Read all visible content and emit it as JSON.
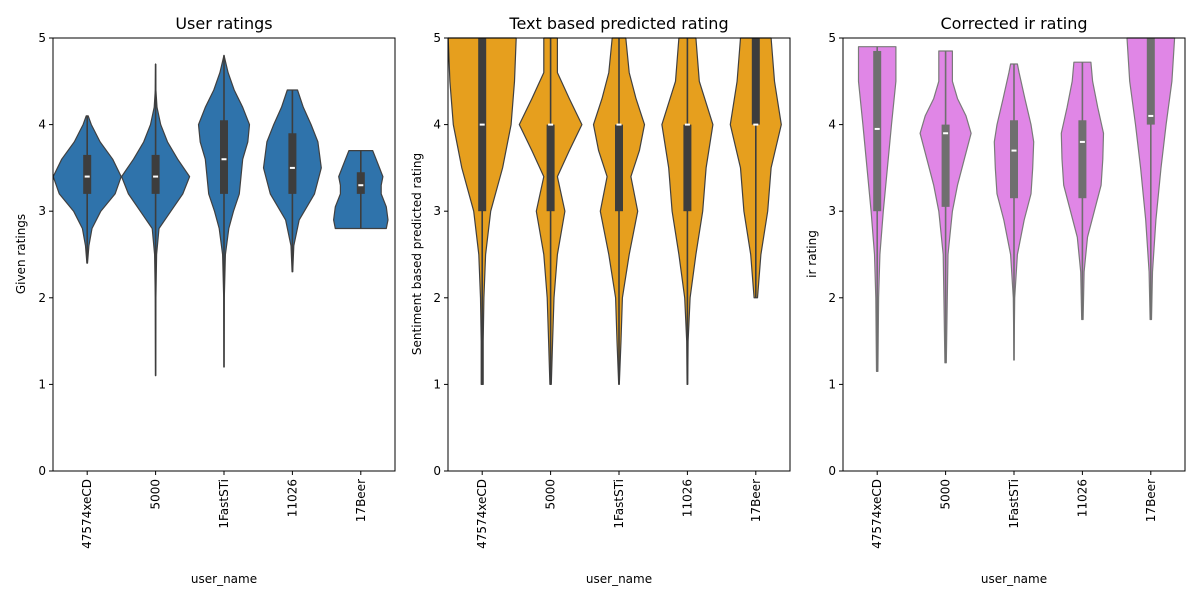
{
  "chart_data": [
    {
      "type": "violin",
      "title": "User ratings",
      "xlabel": "user_name",
      "ylabel": "Given ratings",
      "ylim": [
        0,
        5
      ],
      "yticks": [
        0,
        1,
        2,
        3,
        4,
        5
      ],
      "color": "#2f73ab",
      "categories": [
        "47574xeCD",
        "5000",
        "1FastSTi",
        "11026",
        "17Beer"
      ],
      "distributions": [
        {
          "min": 2.4,
          "q1": 3.2,
          "median": 3.4,
          "q3": 3.65,
          "max": 4.1,
          "profile": [
            [
              2.4,
              0.01
            ],
            [
              2.6,
              0.05
            ],
            [
              2.8,
              0.14
            ],
            [
              3.0,
              0.4
            ],
            [
              3.2,
              0.82
            ],
            [
              3.4,
              1.0
            ],
            [
              3.6,
              0.75
            ],
            [
              3.8,
              0.38
            ],
            [
              4.0,
              0.12
            ],
            [
              4.1,
              0.03
            ]
          ]
        },
        {
          "min": 1.1,
          "q1": 3.2,
          "median": 3.4,
          "q3": 3.65,
          "max": 4.7,
          "profile": [
            [
              1.1,
              0.0
            ],
            [
              2.0,
              0.01
            ],
            [
              2.5,
              0.03
            ],
            [
              2.8,
              0.1
            ],
            [
              3.0,
              0.45
            ],
            [
              3.2,
              0.8
            ],
            [
              3.4,
              1.0
            ],
            [
              3.6,
              0.65
            ],
            [
              3.8,
              0.35
            ],
            [
              4.0,
              0.15
            ],
            [
              4.2,
              0.04
            ],
            [
              4.4,
              0.01
            ],
            [
              4.7,
              0.0
            ]
          ]
        },
        {
          "min": 1.2,
          "q1": 3.2,
          "median": 3.6,
          "q3": 4.05,
          "max": 4.8,
          "profile": [
            [
              1.2,
              0.0
            ],
            [
              2.0,
              0.01
            ],
            [
              2.5,
              0.04
            ],
            [
              2.8,
              0.14
            ],
            [
              3.0,
              0.28
            ],
            [
              3.2,
              0.45
            ],
            [
              3.6,
              0.55
            ],
            [
              3.8,
              0.7
            ],
            [
              4.0,
              0.75
            ],
            [
              4.2,
              0.55
            ],
            [
              4.4,
              0.3
            ],
            [
              4.6,
              0.12
            ],
            [
              4.8,
              0.0
            ]
          ]
        },
        {
          "min": 2.3,
          "q1": 3.2,
          "median": 3.5,
          "q3": 3.9,
          "max": 4.4,
          "profile": [
            [
              2.3,
              0.01
            ],
            [
              2.6,
              0.04
            ],
            [
              2.9,
              0.2
            ],
            [
              3.2,
              0.65
            ],
            [
              3.5,
              0.85
            ],
            [
              3.8,
              0.75
            ],
            [
              4.0,
              0.55
            ],
            [
              4.2,
              0.32
            ],
            [
              4.4,
              0.15
            ]
          ]
        },
        {
          "min": 2.8,
          "q1": 3.2,
          "median": 3.3,
          "q3": 3.45,
          "max": 3.7,
          "profile": [
            [
              2.8,
              0.75
            ],
            [
              2.9,
              0.8
            ],
            [
              3.05,
              0.75
            ],
            [
              3.2,
              0.6
            ],
            [
              3.3,
              0.6
            ],
            [
              3.4,
              0.65
            ],
            [
              3.5,
              0.55
            ],
            [
              3.6,
              0.45
            ],
            [
              3.7,
              0.35
            ]
          ]
        }
      ],
      "grid": false
    },
    {
      "type": "violin",
      "title": "Text based predicted rating",
      "xlabel": "user_name",
      "ylabel": "Sentiment based predicted rating",
      "ylim": [
        0,
        5
      ],
      "yticks": [
        0,
        1,
        2,
        3,
        4,
        5
      ],
      "color": "#e69f1e",
      "categories": [
        "47574xeCD",
        "5000",
        "1FastSTi",
        "11026",
        "17Beer"
      ],
      "distributions": [
        {
          "min": 1.0,
          "q1": 3.0,
          "median": 4.0,
          "q3": 5.0,
          "max": 5.0,
          "profile": [
            [
              1.0,
              0.03
            ],
            [
              1.5,
              0.03
            ],
            [
              2.0,
              0.05
            ],
            [
              2.5,
              0.1
            ],
            [
              3.0,
              0.25
            ],
            [
              3.5,
              0.6
            ],
            [
              4.0,
              0.85
            ],
            [
              4.5,
              0.95
            ],
            [
              5.0,
              1.0
            ]
          ]
        },
        {
          "min": 1.0,
          "q1": 3.0,
          "median": 4.0,
          "q3": 4.0,
          "max": 5.0,
          "profile": [
            [
              1.0,
              0.02
            ],
            [
              1.5,
              0.06
            ],
            [
              2.0,
              0.1
            ],
            [
              2.5,
              0.2
            ],
            [
              3.0,
              0.42
            ],
            [
              3.4,
              0.2
            ],
            [
              3.7,
              0.55
            ],
            [
              4.0,
              0.92
            ],
            [
              4.3,
              0.55
            ],
            [
              4.6,
              0.2
            ],
            [
              5.0,
              0.2
            ]
          ]
        },
        {
          "min": 1.0,
          "q1": 3.0,
          "median": 4.0,
          "q3": 4.0,
          "max": 5.0,
          "profile": [
            [
              1.0,
              0.01
            ],
            [
              1.5,
              0.06
            ],
            [
              2.0,
              0.1
            ],
            [
              2.5,
              0.3
            ],
            [
              3.0,
              0.55
            ],
            [
              3.4,
              0.35
            ],
            [
              3.7,
              0.6
            ],
            [
              4.0,
              0.75
            ],
            [
              4.3,
              0.5
            ],
            [
              4.6,
              0.3
            ],
            [
              5.0,
              0.2
            ]
          ]
        },
        {
          "min": 1.0,
          "q1": 3.0,
          "median": 4.0,
          "q3": 4.0,
          "max": 5.0,
          "profile": [
            [
              1.0,
              0.01
            ],
            [
              1.5,
              0.02
            ],
            [
              2.0,
              0.08
            ],
            [
              2.5,
              0.25
            ],
            [
              3.0,
              0.45
            ],
            [
              3.5,
              0.55
            ],
            [
              4.0,
              0.75
            ],
            [
              4.5,
              0.35
            ],
            [
              5.0,
              0.25
            ]
          ]
        },
        {
          "min": 2.0,
          "q1": 4.0,
          "median": 4.0,
          "q3": 5.0,
          "max": 5.0,
          "profile": [
            [
              2.0,
              0.05
            ],
            [
              2.5,
              0.15
            ],
            [
              3.0,
              0.35
            ],
            [
              3.5,
              0.45
            ],
            [
              4.0,
              0.75
            ],
            [
              4.5,
              0.55
            ],
            [
              5.0,
              0.45
            ]
          ]
        }
      ],
      "grid": false
    },
    {
      "type": "violin",
      "title": "Corrected ir rating",
      "xlabel": "user_name",
      "ylabel": "ir rating",
      "ylim": [
        0,
        5
      ],
      "yticks": [
        0,
        1,
        2,
        3,
        4,
        5
      ],
      "color": "#e086e6",
      "categories": [
        "47574xeCD",
        "5000",
        "1FastSTi",
        "11026",
        "17Beer"
      ],
      "distributions": [
        {
          "min": 1.15,
          "q1": 3.0,
          "median": 3.95,
          "q3": 4.85,
          "max": 4.9,
          "profile": [
            [
              1.15,
              0.02
            ],
            [
              1.5,
              0.03
            ],
            [
              2.0,
              0.04
            ],
            [
              2.5,
              0.08
            ],
            [
              3.0,
              0.18
            ],
            [
              3.5,
              0.3
            ],
            [
              4.0,
              0.42
            ],
            [
              4.5,
              0.55
            ],
            [
              4.9,
              0.55
            ]
          ]
        },
        {
          "min": 1.25,
          "q1": 3.05,
          "median": 3.9,
          "q3": 4.0,
          "max": 4.85,
          "profile": [
            [
              1.25,
              0.02
            ],
            [
              2.0,
              0.05
            ],
            [
              2.5,
              0.07
            ],
            [
              3.0,
              0.2
            ],
            [
              3.3,
              0.35
            ],
            [
              3.6,
              0.55
            ],
            [
              3.9,
              0.75
            ],
            [
              4.1,
              0.6
            ],
            [
              4.3,
              0.35
            ],
            [
              4.5,
              0.2
            ],
            [
              4.85,
              0.2
            ]
          ]
        },
        {
          "min": 1.28,
          "q1": 3.15,
          "median": 3.7,
          "q3": 4.05,
          "max": 4.7,
          "profile": [
            [
              1.28,
              0.0
            ],
            [
              2.0,
              0.02
            ],
            [
              2.5,
              0.1
            ],
            [
              2.9,
              0.3
            ],
            [
              3.2,
              0.5
            ],
            [
              3.5,
              0.55
            ],
            [
              3.8,
              0.58
            ],
            [
              4.0,
              0.5
            ],
            [
              4.3,
              0.32
            ],
            [
              4.6,
              0.15
            ],
            [
              4.7,
              0.1
            ]
          ]
        },
        {
          "min": 1.75,
          "q1": 3.15,
          "median": 3.8,
          "q3": 4.05,
          "max": 4.72,
          "profile": [
            [
              1.75,
              0.02
            ],
            [
              2.3,
              0.05
            ],
            [
              2.7,
              0.15
            ],
            [
              3.0,
              0.35
            ],
            [
              3.3,
              0.55
            ],
            [
              3.6,
              0.6
            ],
            [
              3.9,
              0.62
            ],
            [
              4.2,
              0.45
            ],
            [
              4.5,
              0.3
            ],
            [
              4.72,
              0.25
            ]
          ]
        },
        {
          "min": 1.75,
          "q1": 4.0,
          "median": 4.1,
          "q3": 5.0,
          "max": 5.0,
          "profile": [
            [
              1.75,
              0.02
            ],
            [
              2.3,
              0.05
            ],
            [
              2.9,
              0.15
            ],
            [
              3.5,
              0.3
            ],
            [
              4.0,
              0.45
            ],
            [
              4.5,
              0.62
            ],
            [
              5.0,
              0.7
            ]
          ]
        }
      ],
      "grid": false
    }
  ]
}
